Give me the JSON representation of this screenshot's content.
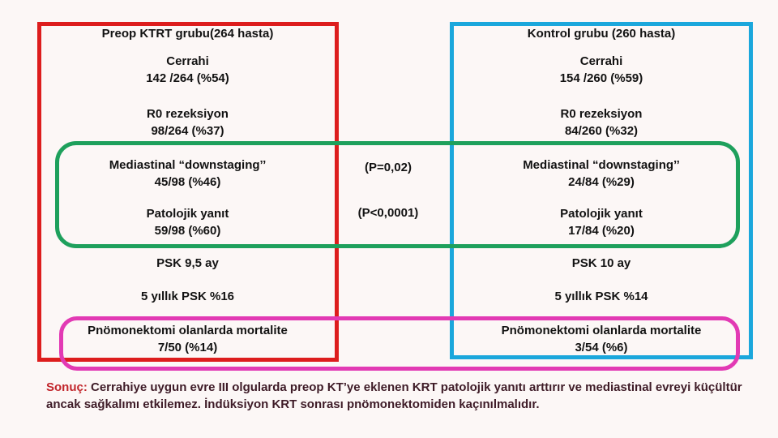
{
  "colors": {
    "background": "#FCF7F6",
    "preop_box_border": "#DD1D1D",
    "kontrol_box_border": "#1BA7DC",
    "significance_box_border": "#1EA05C",
    "mortality_box_border": "#E23AB4",
    "body_text": "#121212",
    "summary_label": "#C2262C",
    "summary_text": "#3E1B27"
  },
  "left_group": {
    "title": "Preop KTRT grubu(264 hasta)",
    "rows": [
      {
        "label": "Cerrahi",
        "value": "142 /264 (%54)"
      },
      {
        "label": "R0 rezeksiyon",
        "value": "98/264 (%37)"
      },
      {
        "label": "Mediastinal “downstaging’’",
        "value": "45/98 (%46)"
      },
      {
        "label": "Patolojik yanıt",
        "value": "59/98 (%60)"
      },
      {
        "label": "PSK 9,5 ay"
      },
      {
        "label": "5 yıllık PSK %16"
      },
      {
        "label": "Pnömonektomi olanlarda mortalite",
        "value": "7/50 (%14)"
      }
    ]
  },
  "right_group": {
    "title": "Kontrol grubu (260 hasta)",
    "rows": [
      {
        "label": "Cerrahi",
        "value": "154 /260 (%59)"
      },
      {
        "label": "R0 rezeksiyon",
        "value": "84/260 (%32)"
      },
      {
        "label": "Mediastinal “downstaging’’",
        "value": "24/84 (%29)"
      },
      {
        "label": "Patolojik yanıt",
        "value": "17/84 (%20)"
      },
      {
        "label": "PSK 10 ay"
      },
      {
        "label": "5 yıllık PSK %14"
      },
      {
        "label": "Pnömonektomi olanlarda mortalite",
        "value": "3/54 (%6)"
      }
    ]
  },
  "p_values": {
    "downstaging": "(P=0,02)",
    "pathologic": "(P<0,0001)"
  },
  "summary": {
    "label": "Sonuç:",
    "text": " Cerrahiye uygun evre III olgularda preop KT’ye eklenen KRT patolojik yanıtı arttırır ve mediastinal evreyi küçültür ancak sağkalımı etkilemez. İndüksiyon KRT sonrası pnömonektomiden kaçınılmalıdır."
  }
}
